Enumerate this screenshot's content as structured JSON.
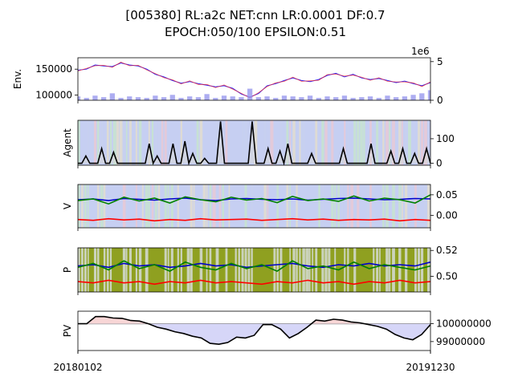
{
  "figure": {
    "title_line1": "[005380] RL:a2c NET:cnn LR:0.0001 DF:0.7",
    "title_line2": "EPOCH:050/100 EPSILON:0.51"
  },
  "chart_data": [
    {
      "type": "line",
      "panel": "env",
      "ylabel": "Env.",
      "ylim": [
        90000,
        172000
      ],
      "yticks": [
        100000,
        150000
      ],
      "secondary_axis": {
        "multiplier_label": "1e6",
        "ylim": [
          0,
          5.5
        ],
        "yticks": [
          0,
          5
        ]
      },
      "series": [
        {
          "role": "price",
          "color": "#2222ff",
          "values": [
            148000,
            150000,
            158000,
            156000,
            155000,
            162000,
            158000,
            156000,
            150000,
            140000,
            135000,
            128000,
            123000,
            126000,
            122000,
            119000,
            116000,
            118000,
            113000,
            102000,
            96000,
            103000,
            118000,
            122000,
            128000,
            133000,
            128000,
            126000,
            130000,
            138000,
            142000,
            135000,
            140000,
            133000,
            130000,
            132000,
            128000,
            124000,
            127000,
            122000,
            118000,
            124000
          ]
        },
        {
          "role": "volume",
          "color": "#9999ee",
          "values": [
            0.5,
            0.3,
            0.6,
            0.4,
            0.9,
            0.3,
            0.5,
            0.4,
            0.3,
            0.6,
            0.4,
            0.7,
            0.3,
            0.5,
            0.4,
            0.8,
            0.3,
            0.6,
            0.5,
            0.4,
            1.5,
            0.4,
            0.5,
            0.3,
            0.6,
            0.5,
            0.4,
            0.6,
            0.3,
            0.5,
            0.4,
            0.6,
            0.3,
            0.4,
            0.5,
            0.3,
            0.6,
            0.4,
            0.5,
            0.7,
            0.9,
            1.3
          ]
        }
      ]
    },
    {
      "type": "line",
      "panel": "agent",
      "ylabel": "Agent",
      "ylim": [
        -8,
        175
      ],
      "yticks": [
        0,
        100
      ],
      "series": [
        {
          "color": "#000000",
          "values": [
            0,
            0,
            30,
            0,
            0,
            0,
            60,
            0,
            0,
            45,
            0,
            0,
            0,
            0,
            0,
            0,
            0,
            0,
            80,
            0,
            30,
            0,
            0,
            0,
            80,
            0,
            0,
            90,
            0,
            40,
            0,
            0,
            20,
            0,
            0,
            0,
            170,
            0,
            0,
            0,
            0,
            0,
            0,
            0,
            170,
            0,
            0,
            0,
            60,
            0,
            0,
            50,
            0,
            80,
            0,
            0,
            0,
            0,
            0,
            40,
            0,
            0,
            0,
            0,
            0,
            0,
            0,
            60,
            0,
            0,
            0,
            0,
            0,
            0,
            80,
            0,
            0,
            0,
            0,
            50,
            0,
            0,
            60,
            0,
            0,
            40,
            0,
            0,
            60,
            0
          ]
        }
      ]
    },
    {
      "type": "line",
      "panel": "value",
      "ylabel": "V",
      "ylim": [
        -0.03,
        0.075
      ],
      "yticks": [
        0.0,
        0.05
      ],
      "ytick_labels": [
        "0.00",
        "0.05"
      ],
      "series": [
        {
          "color": "#0000cc",
          "values": [
            0.038,
            0.04,
            0.036,
            0.041,
            0.039,
            0.037,
            0.04,
            0.042,
            0.038,
            0.036,
            0.04,
            0.041,
            0.039,
            0.038,
            0.04,
            0.037,
            0.039,
            0.041,
            0.042,
            0.04,
            0.038,
            0.039,
            0.041,
            0.04
          ]
        },
        {
          "color": "#008000",
          "values": [
            0.036,
            0.04,
            0.028,
            0.044,
            0.035,
            0.042,
            0.03,
            0.045,
            0.038,
            0.033,
            0.044,
            0.037,
            0.041,
            0.031,
            0.046,
            0.036,
            0.04,
            0.034,
            0.047,
            0.035,
            0.042,
            0.038,
            0.03,
            0.05
          ]
        },
        {
          "color": "#ff0000",
          "values": [
            -0.01,
            -0.012,
            -0.008,
            -0.011,
            -0.009,
            -0.013,
            -0.01,
            -0.012,
            -0.008,
            -0.011,
            -0.01,
            -0.009,
            -0.012,
            -0.01,
            -0.008,
            -0.011,
            -0.009,
            -0.012,
            -0.01,
            -0.011,
            -0.009,
            -0.013,
            -0.01,
            -0.012
          ]
        }
      ]
    },
    {
      "type": "line",
      "panel": "policy",
      "ylabel": "P",
      "ylim": [
        0.488,
        0.522
      ],
      "yticks": [
        0.5,
        0.52
      ],
      "ytick_labels": [
        "0.50",
        "0.52"
      ],
      "series": [
        {
          "color": "#0000cc",
          "values": [
            0.508,
            0.509,
            0.507,
            0.51,
            0.508,
            0.509,
            0.507,
            0.508,
            0.51,
            0.508,
            0.509,
            0.507,
            0.508,
            0.509,
            0.51,
            0.508,
            0.507,
            0.509,
            0.508,
            0.51,
            0.508,
            0.509,
            0.508,
            0.511
          ]
        },
        {
          "color": "#008000",
          "values": [
            0.507,
            0.51,
            0.505,
            0.512,
            0.506,
            0.509,
            0.504,
            0.511,
            0.507,
            0.505,
            0.51,
            0.506,
            0.509,
            0.504,
            0.512,
            0.506,
            0.508,
            0.505,
            0.511,
            0.506,
            0.509,
            0.507,
            0.505,
            0.508
          ]
        },
        {
          "color": "#ff0000",
          "values": [
            0.496,
            0.495,
            0.497,
            0.495,
            0.496,
            0.494,
            0.496,
            0.495,
            0.497,
            0.495,
            0.496,
            0.495,
            0.494,
            0.496,
            0.495,
            0.497,
            0.495,
            0.496,
            0.494,
            0.496,
            0.495,
            0.497,
            0.495,
            0.496
          ]
        }
      ]
    },
    {
      "type": "area",
      "panel": "pv",
      "ylabel": "PV",
      "ylim": [
        98500000,
        100700000
      ],
      "yticks": [
        99000000,
        100000000
      ],
      "baseline": 100000000,
      "series": [
        {
          "color": "#000000",
          "values": [
            100000000,
            100000000,
            100400000,
            100400000,
            100320000,
            100300000,
            100180000,
            100150000,
            100000000,
            99800000,
            99700000,
            99550000,
            99450000,
            99300000,
            99200000,
            98900000,
            98850000,
            98950000,
            99250000,
            99200000,
            99350000,
            99950000,
            99950000,
            99700000,
            99200000,
            99450000,
            99800000,
            100200000,
            100150000,
            100250000,
            100200000,
            100100000,
            100050000,
            99950000,
            99850000,
            99700000,
            99400000,
            99200000,
            99100000,
            99400000,
            99950000
          ]
        }
      ]
    }
  ],
  "x_axis": {
    "tick_labels": [
      "20180102",
      "20191230"
    ]
  }
}
